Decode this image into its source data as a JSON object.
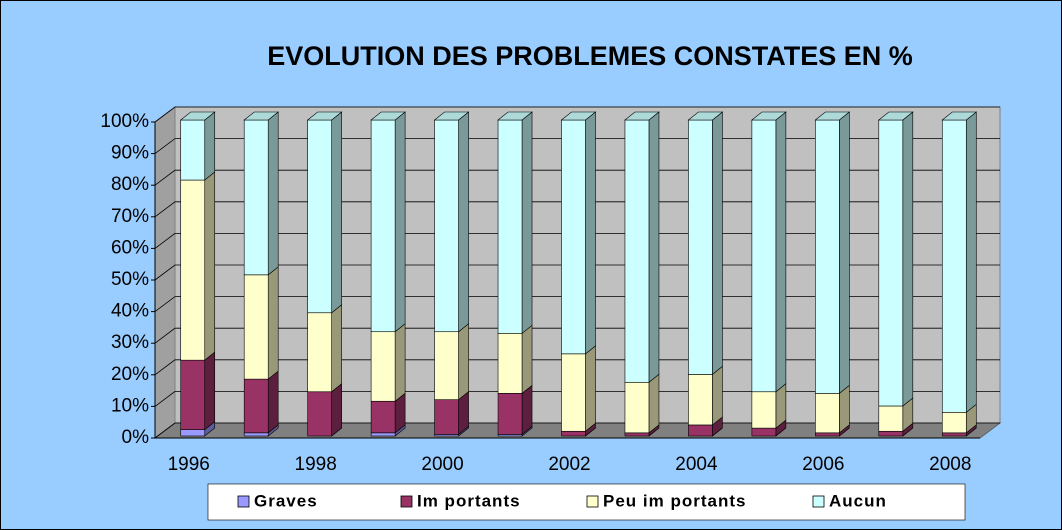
{
  "chart_data": {
    "type": "stacked_bar_3d",
    "title": "EVOLUTION DES PROBLEMES CONSTATES EN %",
    "categories": [
      "1996",
      null,
      "1998",
      null,
      "2000",
      null,
      "2002",
      null,
      "2004",
      null,
      "2006",
      null,
      "2008"
    ],
    "series": [
      {
        "name": "Graves",
        "color": "#9999ff",
        "values": [
          2,
          1,
          0,
          1,
          0.5,
          0.5,
          0,
          0,
          0,
          0,
          0,
          0,
          0
        ]
      },
      {
        "name": "Im portants",
        "color": "#993366",
        "values": [
          22,
          17,
          14,
          10,
          11,
          13,
          1.5,
          1,
          3.5,
          2.5,
          1,
          1.5,
          1
        ]
      },
      {
        "name": "Peu im portants",
        "color": "#ffffcc",
        "values": [
          57,
          33,
          25,
          22,
          21.5,
          19,
          24.5,
          16,
          16,
          11.5,
          12.5,
          8,
          6.5
        ]
      },
      {
        "name": "Aucun",
        "color": "#ccffff",
        "values": [
          19,
          49,
          61,
          67,
          67,
          67.5,
          74,
          83,
          80.5,
          86,
          86.5,
          90.5,
          92.5
        ]
      }
    ],
    "ylim": [
      0,
      100
    ],
    "yticks": [
      {
        "value": 0,
        "label": "0%"
      },
      {
        "value": 10,
        "label": "10%"
      },
      {
        "value": 20,
        "label": "20%"
      },
      {
        "value": 30,
        "label": "30%"
      },
      {
        "value": 40,
        "label": "40%"
      },
      {
        "value": 50,
        "label": "50%"
      },
      {
        "value": 60,
        "label": "60%"
      },
      {
        "value": 70,
        "label": "70%"
      },
      {
        "value": 80,
        "label": "80%"
      },
      {
        "value": 90,
        "label": "90%"
      },
      {
        "value": 100,
        "label": "100%"
      }
    ],
    "grid": true,
    "legend": "bottom"
  }
}
